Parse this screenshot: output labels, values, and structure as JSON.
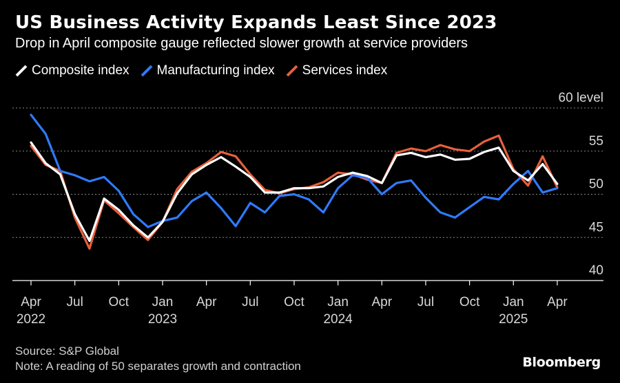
{
  "chart_data": {
    "type": "line",
    "title": "US Business Activity Expands Least Since 2023",
    "subtitle": "Drop in April composite gauge reflected slower growth at service providers",
    "y_unit": "level",
    "ylim": [
      40,
      60
    ],
    "yticks": [
      40,
      45,
      50,
      55,
      60
    ],
    "grid": true,
    "legend_position": "top-left",
    "x": [
      "2022-04",
      "2022-05",
      "2022-06",
      "2022-07",
      "2022-08",
      "2022-09",
      "2022-10",
      "2022-11",
      "2022-12",
      "2023-01",
      "2023-02",
      "2023-03",
      "2023-04",
      "2023-05",
      "2023-06",
      "2023-07",
      "2023-08",
      "2023-09",
      "2023-10",
      "2023-11",
      "2023-12",
      "2024-01",
      "2024-02",
      "2024-03",
      "2024-04",
      "2024-05",
      "2024-06",
      "2024-07",
      "2024-08",
      "2024-09",
      "2024-10",
      "2024-11",
      "2024-12",
      "2025-01",
      "2025-02",
      "2025-03",
      "2025-04"
    ],
    "x_tick_labels": [
      {
        "label": "Apr",
        "year": "2022",
        "index": 0
      },
      {
        "label": "Jul",
        "year": "",
        "index": 3
      },
      {
        "label": "Oct",
        "year": "",
        "index": 6
      },
      {
        "label": "Jan",
        "year": "2023",
        "index": 9
      },
      {
        "label": "Apr",
        "year": "",
        "index": 12
      },
      {
        "label": "Jul",
        "year": "",
        "index": 15
      },
      {
        "label": "Oct",
        "year": "",
        "index": 18
      },
      {
        "label": "Jan",
        "year": "2024",
        "index": 21
      },
      {
        "label": "Apr",
        "year": "",
        "index": 24
      },
      {
        "label": "Jul",
        "year": "",
        "index": 27
      },
      {
        "label": "Oct",
        "year": "",
        "index": 30
      },
      {
        "label": "Jan",
        "year": "2025",
        "index": 33
      },
      {
        "label": "Apr",
        "year": "",
        "index": 36
      }
    ],
    "series": [
      {
        "name": "Services index",
        "color": "#e8603c",
        "values": [
          55.6,
          53.4,
          52.7,
          47.3,
          43.7,
          49.3,
          47.8,
          46.2,
          44.7,
          46.8,
          50.6,
          52.6,
          53.6,
          54.9,
          54.4,
          52.3,
          50.5,
          50.1,
          50.6,
          50.8,
          51.4,
          52.5,
          52.3,
          51.7,
          51.3,
          54.8,
          55.3,
          55.0,
          55.7,
          55.2,
          55.0,
          56.1,
          56.8,
          52.9,
          51.0,
          54.4,
          50.8
        ]
      },
      {
        "name": "Manufacturing index",
        "color": "#2f7bff",
        "values": [
          59.2,
          57.0,
          52.7,
          52.2,
          51.5,
          52.0,
          50.4,
          47.7,
          46.2,
          46.9,
          47.3,
          49.2,
          50.2,
          48.4,
          46.3,
          49.0,
          47.9,
          49.8,
          50.0,
          49.4,
          47.9,
          50.7,
          52.2,
          51.9,
          50.0,
          51.3,
          51.6,
          49.6,
          47.9,
          47.3,
          48.5,
          49.7,
          49.4,
          51.2,
          52.7,
          50.2,
          50.7
        ]
      },
      {
        "name": "Composite index",
        "color": "#ffffff",
        "values": [
          56.0,
          53.6,
          52.3,
          47.7,
          44.6,
          49.5,
          48.2,
          46.4,
          45.0,
          46.8,
          50.1,
          52.3,
          53.4,
          54.3,
          53.2,
          52.0,
          50.2,
          50.2,
          50.7,
          50.7,
          50.9,
          52.0,
          52.5,
          52.1,
          51.3,
          54.5,
          54.8,
          54.3,
          54.6,
          54.0,
          54.1,
          54.9,
          55.4,
          52.7,
          51.6,
          53.5,
          51.2
        ]
      }
    ]
  },
  "legend": [
    {
      "label": "Composite index",
      "color": "#ffffff"
    },
    {
      "label": "Manufacturing index",
      "color": "#2f7bff"
    },
    {
      "label": "Services index",
      "color": "#e8603c"
    }
  ],
  "footer": {
    "source": "Source: S&P Global",
    "note": "Note: A reading of 50 separates growth and contraction"
  },
  "brand": "Bloomberg"
}
